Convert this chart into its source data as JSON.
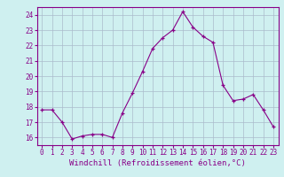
{
  "x": [
    0,
    1,
    2,
    3,
    4,
    5,
    6,
    7,
    8,
    9,
    10,
    11,
    12,
    13,
    14,
    15,
    16,
    17,
    18,
    19,
    20,
    21,
    22,
    23
  ],
  "y": [
    17.8,
    17.8,
    17.0,
    15.9,
    16.1,
    16.2,
    16.2,
    16.0,
    17.6,
    18.9,
    20.3,
    21.8,
    22.5,
    23.0,
    24.2,
    23.2,
    22.6,
    22.2,
    19.4,
    18.4,
    18.5,
    18.8,
    17.8,
    16.7
  ],
  "xlabel": "Windchill (Refroidissement éolien,°C)",
  "ylim": [
    15.5,
    24.5
  ],
  "yticks": [
    16,
    17,
    18,
    19,
    20,
    21,
    22,
    23,
    24
  ],
  "xticks": [
    0,
    1,
    2,
    3,
    4,
    5,
    6,
    7,
    8,
    9,
    10,
    11,
    12,
    13,
    14,
    15,
    16,
    17,
    18,
    19,
    20,
    21,
    22,
    23
  ],
  "line_color": "#880088",
  "marker": "+",
  "bg_color": "#cff0f0",
  "grid_color": "#aabbcc",
  "tick_label_fontsize": 5.5,
  "xlabel_fontsize": 6.5
}
